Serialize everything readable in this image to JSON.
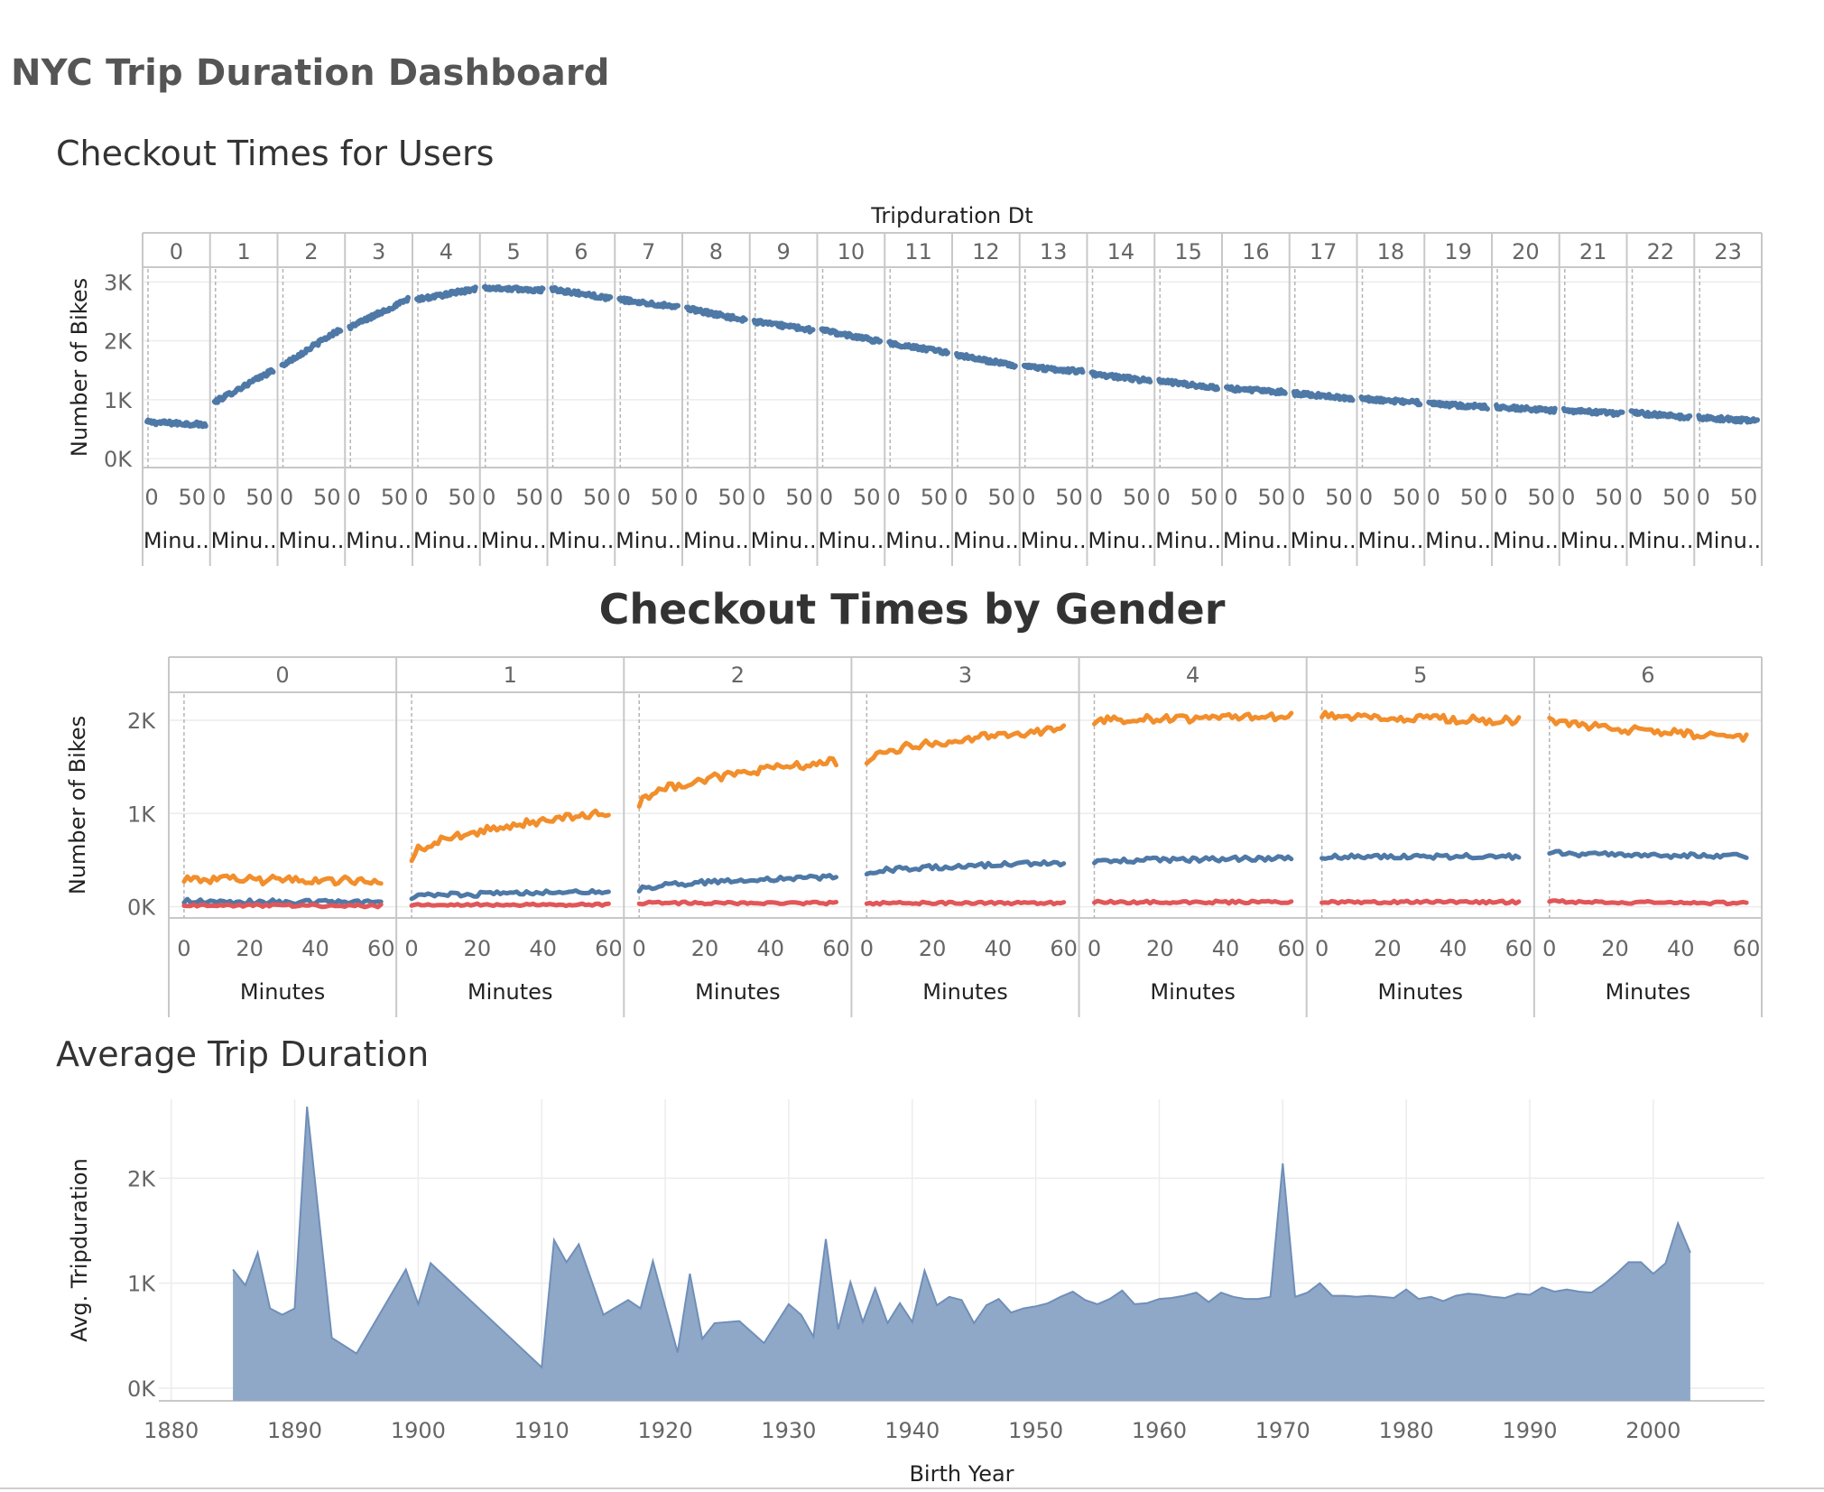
{
  "dashboard": {
    "title": "NYC Trip Duration Dashboard"
  },
  "colors": {
    "blue": "#4e79a7",
    "orange": "#f28e2b",
    "red": "#e15759",
    "area_fill": "#8fa8c8",
    "area_line": "#6f8fb8"
  },
  "chart_data": [
    {
      "id": "users",
      "type": "line",
      "title": "Checkout Times for Users",
      "column_header_title": "Tripduration Dt",
      "panels": [
        "0",
        "1",
        "2",
        "3",
        "4",
        "5",
        "6",
        "7",
        "8",
        "9",
        "10",
        "11",
        "12",
        "13",
        "14",
        "15",
        "16",
        "17",
        "18",
        "19",
        "20",
        "21",
        "22",
        "23"
      ],
      "panel_xlabel": "Minu..",
      "x_ticks": [
        "0",
        "50"
      ],
      "xlim": [
        0,
        60
      ],
      "ylabel": "Number of Bikes",
      "y_ticks": [
        {
          "v": 0,
          "label": "0K"
        },
        {
          "v": 1000,
          "label": "1K"
        },
        {
          "v": 2000,
          "label": "2K"
        },
        {
          "v": 3000,
          "label": "3K"
        }
      ],
      "ylim": [
        -150,
        3250
      ],
      "series": [
        {
          "color_key": "blue",
          "panel_ranges": [
            [
              620,
              580
            ],
            [
              960,
              1500
            ],
            [
              1580,
              2200
            ],
            [
              2230,
              2700
            ],
            [
              2700,
              2880
            ],
            [
              2900,
              2860
            ],
            [
              2880,
              2720
            ],
            [
              2700,
              2580
            ],
            [
              2550,
              2350
            ],
            [
              2330,
              2180
            ],
            [
              2180,
              1990
            ],
            [
              1960,
              1800
            ],
            [
              1760,
              1580
            ],
            [
              1560,
              1480
            ],
            [
              1440,
              1320
            ],
            [
              1320,
              1200
            ],
            [
              1190,
              1130
            ],
            [
              1110,
              1020
            ],
            [
              1020,
              950
            ],
            [
              930,
              880
            ],
            [
              880,
              820
            ],
            [
              820,
              760
            ],
            [
              780,
              700
            ],
            [
              700,
              640
            ]
          ]
        }
      ]
    },
    {
      "id": "gender",
      "type": "line",
      "title": "Checkout Times by Gender",
      "panels": [
        "0",
        "1",
        "2",
        "3",
        "4",
        "5",
        "6"
      ],
      "panel_xlabel": "Minutes",
      "x_ticks": [
        "0",
        "20",
        "40",
        "60"
      ],
      "xlim": [
        -3,
        63
      ],
      "ylabel": "Number of Bikes",
      "y_ticks": [
        {
          "v": 0,
          "label": "0K"
        },
        {
          "v": 1000,
          "label": "1K"
        },
        {
          "v": 2000,
          "label": "2K"
        }
      ],
      "ylim": [
        -120,
        2300
      ],
      "series": [
        {
          "color_key": "orange",
          "panel_ranges": [
            [
              300,
              280
            ],
            [
              520,
              1020
            ],
            [
              1100,
              1560
            ],
            [
              1560,
              1900
            ],
            [
              1980,
              2040
            ],
            [
              2050,
              2000
            ],
            [
              2040,
              1820
            ]
          ]
        },
        {
          "color_key": "blue",
          "panel_ranges": [
            [
              60,
              50
            ],
            [
              100,
              160
            ],
            [
              180,
              320
            ],
            [
              360,
              470
            ],
            [
              480,
              520
            ],
            [
              530,
              540
            ],
            [
              580,
              540
            ]
          ]
        },
        {
          "color_key": "red",
          "panel_ranges": [
            [
              20,
              10
            ],
            [
              20,
              20
            ],
            [
              40,
              40
            ],
            [
              40,
              40
            ],
            [
              50,
              50
            ],
            [
              50,
              50
            ],
            [
              60,
              40
            ]
          ]
        }
      ]
    },
    {
      "id": "avg",
      "type": "area",
      "title": "Average Trip Duration",
      "xlabel": "Birth Year",
      "ylabel": "Avg. Tripduration",
      "x_ticks": [
        1880,
        1890,
        1900,
        1910,
        1920,
        1930,
        1940,
        1950,
        1960,
        1970,
        1980,
        1990,
        2000
      ],
      "xlim": [
        1879,
        2009
      ],
      "y_ticks": [
        {
          "v": 0,
          "label": "0K"
        },
        {
          "v": 1000,
          "label": "1K"
        },
        {
          "v": 2000,
          "label": "2K"
        }
      ],
      "ylim": [
        -120,
        2750
      ],
      "x": [
        1885,
        1886,
        1887,
        1888,
        1889,
        1890,
        1891,
        1893,
        1895,
        1899,
        1900,
        1901,
        1910,
        1911,
        1912,
        1913,
        1915,
        1917,
        1918,
        1919,
        1921,
        1922,
        1923,
        1924,
        1926,
        1928,
        1930,
        1931,
        1932,
        1933,
        1934,
        1935,
        1936,
        1937,
        1938,
        1939,
        1940,
        1941,
        1942,
        1943,
        1944,
        1945,
        1946,
        1947,
        1948,
        1949,
        1950,
        1951,
        1952,
        1953,
        1954,
        1955,
        1956,
        1957,
        1958,
        1959,
        1960,
        1961,
        1962,
        1963,
        1964,
        1965,
        1966,
        1967,
        1968,
        1969,
        1970,
        1971,
        1972,
        1973,
        1974,
        1975,
        1976,
        1977,
        1978,
        1979,
        1980,
        1981,
        1982,
        1983,
        1984,
        1985,
        1986,
        1987,
        1988,
        1989,
        1990,
        1991,
        1992,
        1993,
        1994,
        1995,
        1996,
        1997,
        1998,
        1999,
        2000,
        2001,
        2002,
        2003
      ],
      "values": [
        1130,
        980,
        1290,
        760,
        700,
        760,
        2680,
        480,
        330,
        1130,
        800,
        1190,
        200,
        1410,
        1200,
        1370,
        700,
        840,
        760,
        1210,
        340,
        1090,
        470,
        620,
        640,
        430,
        800,
        700,
        490,
        1420,
        560,
        1010,
        630,
        950,
        620,
        810,
        630,
        1120,
        790,
        870,
        840,
        620,
        790,
        850,
        720,
        760,
        780,
        810,
        870,
        920,
        840,
        800,
        850,
        930,
        800,
        810,
        850,
        860,
        880,
        910,
        820,
        910,
        870,
        850,
        850,
        870,
        2140,
        870,
        910,
        1000,
        880,
        880,
        870,
        880,
        870,
        860,
        940,
        850,
        870,
        830,
        880,
        900,
        890,
        870,
        860,
        900,
        890,
        960,
        920,
        940,
        920,
        910,
        990,
        1090,
        1200,
        1200,
        1090,
        1190,
        1570,
        1290
      ]
    }
  ]
}
